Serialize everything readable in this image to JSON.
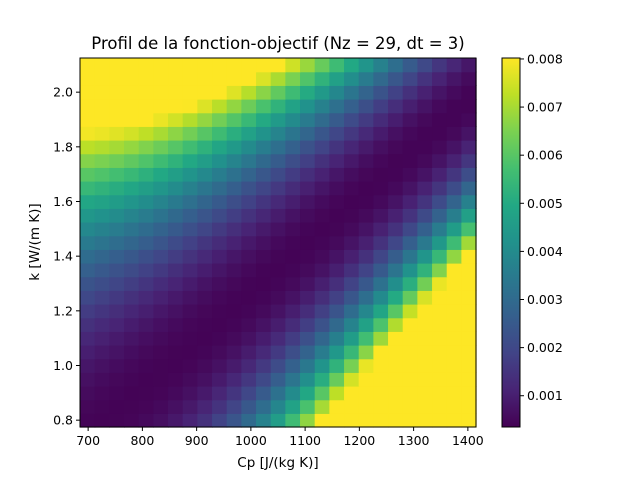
{
  "chart_data": {
    "type": "heatmap",
    "title": "Profil de la fonction-objectif (Nz = 29, dt = 3)",
    "xlabel": "Cp [J/(kg K)]",
    "ylabel": "k [W/(m K)]",
    "x_range": [
      685,
      1415
    ],
    "y_range": [
      0.775,
      2.125
    ],
    "x_ticks": [
      700,
      800,
      900,
      1000,
      1100,
      1200,
      1300,
      1400
    ],
    "x_tick_labels": [
      "700",
      "800",
      "900",
      "1000",
      "1100",
      "1200",
      "1300",
      "1400"
    ],
    "y_ticks": [
      0.8,
      1.0,
      1.2,
      1.4,
      1.6,
      1.8,
      2.0
    ],
    "y_tick_labels": [
      "0.8",
      "1.0",
      "1.2",
      "1.4",
      "1.6",
      "1.8",
      "2.0"
    ],
    "grid": {
      "nx": 27,
      "ny": 27,
      "x_start": 685,
      "x_step": 27.04,
      "y_start": 0.775,
      "y_step": 0.05,
      "valley_offset": -0.485,
      "valley_slope": 0.00175,
      "quad_coef": 1.24e-08,
      "bias": 0.0004
    },
    "colormap": "viridis",
    "colorbar": {
      "range": [
        0.00035,
        0.00802
      ],
      "ticks": [
        0.001,
        0.002,
        0.003,
        0.004,
        0.005,
        0.006,
        0.007,
        0.008
      ],
      "tick_labels": [
        "0.001",
        "0.002",
        "0.003",
        "0.004",
        "0.005",
        "0.006",
        "0.007",
        "0.008"
      ]
    }
  }
}
